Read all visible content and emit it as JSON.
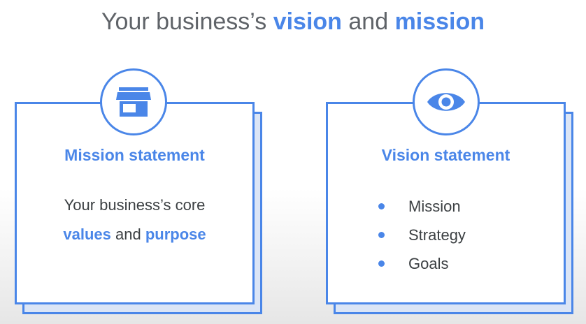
{
  "title": {
    "prefix": "Your business’s ",
    "vision": "vision",
    "middle": " and ",
    "mission": "mission"
  },
  "mission_card": {
    "icon": "storefront-icon",
    "heading": "Mission statement",
    "line1": "Your business’s core",
    "values": "values",
    "and": " and ",
    "purpose": "purpose"
  },
  "vision_card": {
    "icon": "eye-icon",
    "heading": "Vision statement",
    "items": [
      "Mission",
      "Strategy",
      "Goals"
    ]
  },
  "colors": {
    "accent": "#4a86e8",
    "text": "#3c4043",
    "title_gray": "#5f6368"
  }
}
